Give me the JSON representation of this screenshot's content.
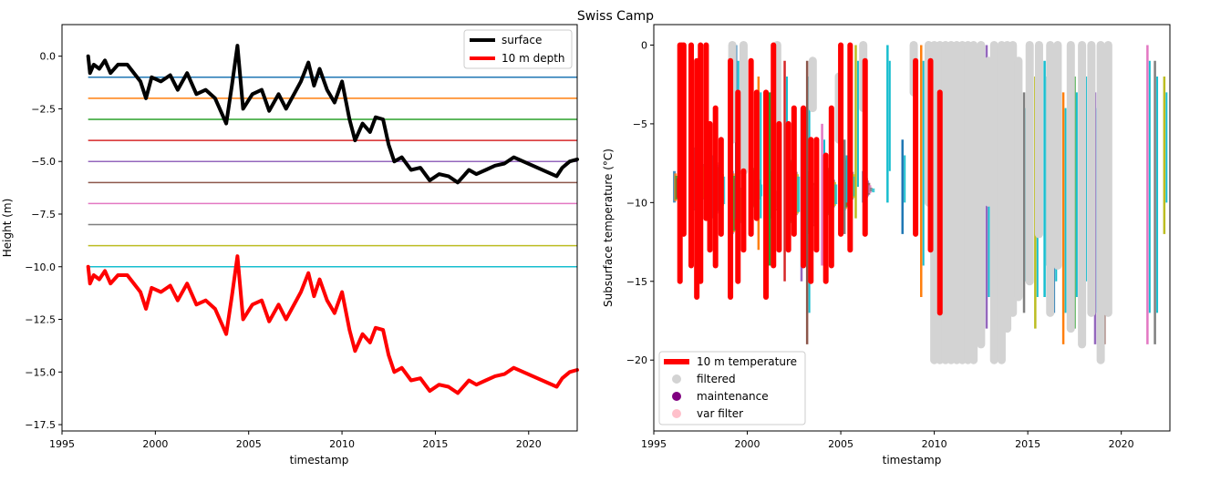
{
  "figure": {
    "title": "Swiss Camp"
  },
  "chart_data": [
    {
      "type": "line",
      "xlabel": "timestamp",
      "ylabel": "Height (m)",
      "xlim": [
        1995,
        2022.6
      ],
      "ylim": [
        -17.8,
        1.5
      ],
      "xticks": [
        1995,
        2000,
        2005,
        2010,
        2015,
        2020
      ],
      "xtick_labels": [
        "1995",
        "2000",
        "2005",
        "2010",
        "2015",
        "2020"
      ],
      "yticks": [
        0,
        -2.5,
        -5,
        -7.5,
        -10,
        -12.5,
        -15,
        -17.5
      ],
      "ytick_labels": [
        "0.0",
        "−2.5",
        "−5.0",
        "−7.5",
        "−10.0",
        "−12.5",
        "−15.0",
        "−17.5"
      ],
      "legend_position": "top-right",
      "legend": [
        {
          "label": "surface",
          "color": "#000000"
        },
        {
          "label": "10 m depth",
          "color": "#ff0000"
        }
      ],
      "hlines": {
        "values": [
          -1,
          -2,
          -3,
          -4,
          -5,
          -6,
          -7,
          -8,
          -9,
          -10
        ],
        "colors": [
          "#1f77b4",
          "#ff7f0e",
          "#2ca02c",
          "#d62728",
          "#9467bd",
          "#8c564b",
          "#e377c2",
          "#7f7f7f",
          "#bcbd22",
          "#17becf"
        ],
        "xrange": [
          1996.4,
          2022.6
        ]
      },
      "series": [
        {
          "color": "#000000",
          "x": [
            1996.4,
            1996.5,
            1996.7,
            1997.0,
            1997.3,
            1997.6,
            1998.0,
            1998.5,
            1999.2,
            1999.5,
            1999.8,
            2000.3,
            2000.8,
            2001.2,
            2001.7,
            2002.2,
            2002.7,
            2003.2,
            2003.6,
            2003.8,
            2004.1,
            2004.4,
            2004.7,
            2005.2,
            2005.7,
            2006.1,
            2006.6,
            2007.0,
            2007.8,
            2008.2,
            2008.5,
            2008.8,
            2009.2,
            2009.6,
            2010.0,
            2010.4,
            2010.7,
            2011.1,
            2011.5,
            2011.8,
            2012.2,
            2012.5,
            2012.8,
            2013.2,
            2013.7,
            2014.2,
            2014.7,
            2015.2,
            2015.7,
            2016.2,
            2016.8,
            2017.2,
            2017.7,
            2018.2,
            2018.7,
            2019.2,
            2021.5,
            2021.8,
            2022.2,
            2022.6
          ],
          "y": [
            0,
            -0.8,
            -0.4,
            -0.6,
            -0.2,
            -0.8,
            -0.4,
            -0.4,
            -1.2,
            -2.0,
            -1.0,
            -1.2,
            -0.9,
            -1.6,
            -0.8,
            -1.8,
            -1.6,
            -2.0,
            -2.8,
            -3.2,
            -1.4,
            0.5,
            -2.5,
            -1.8,
            -1.6,
            -2.6,
            -1.8,
            -2.5,
            -1.2,
            -0.3,
            -1.4,
            -0.6,
            -1.6,
            -2.2,
            -1.2,
            -3.0,
            -4.0,
            -3.2,
            -3.6,
            -2.9,
            -3.0,
            -4.2,
            -5.0,
            -4.8,
            -5.4,
            -5.3,
            -5.9,
            -5.6,
            -5.7,
            -6.0,
            -5.4,
            -5.6,
            -5.4,
            -5.2,
            -5.1,
            -4.8,
            -5.7,
            -5.3,
            -5.0,
            -4.9
          ]
        },
        {
          "color": "#ff0000",
          "x": [
            1996.4,
            1996.5,
            1996.7,
            1997.0,
            1997.3,
            1997.6,
            1998.0,
            1998.5,
            1999.2,
            1999.5,
            1999.8,
            2000.3,
            2000.8,
            2001.2,
            2001.7,
            2002.2,
            2002.7,
            2003.2,
            2003.6,
            2003.8,
            2004.1,
            2004.4,
            2004.7,
            2005.2,
            2005.7,
            2006.1,
            2006.6,
            2007.0,
            2007.8,
            2008.2,
            2008.5,
            2008.8,
            2009.2,
            2009.6,
            2010.0,
            2010.4,
            2010.7,
            2011.1,
            2011.5,
            2011.8,
            2012.2,
            2012.5,
            2012.8,
            2013.2,
            2013.7,
            2014.2,
            2014.7,
            2015.2,
            2015.7,
            2016.2,
            2016.8,
            2017.2,
            2017.7,
            2018.2,
            2018.7,
            2019.2,
            2021.5,
            2021.8,
            2022.2,
            2022.6
          ],
          "y": [
            -10,
            -10.8,
            -10.4,
            -10.6,
            -10.2,
            -10.8,
            -10.4,
            -10.4,
            -11.2,
            -12.0,
            -11.0,
            -11.2,
            -10.9,
            -11.6,
            -10.8,
            -11.8,
            -11.6,
            -12.0,
            -12.8,
            -13.2,
            -11.4,
            -9.5,
            -12.5,
            -11.8,
            -11.6,
            -12.6,
            -11.8,
            -12.5,
            -11.2,
            -10.3,
            -11.4,
            -10.6,
            -11.6,
            -12.2,
            -11.2,
            -13.0,
            -14.0,
            -13.2,
            -13.6,
            -12.9,
            -13.0,
            -14.2,
            -15.0,
            -14.8,
            -15.4,
            -15.3,
            -15.9,
            -15.6,
            -15.7,
            -16.0,
            -15.4,
            -15.6,
            -15.4,
            -15.2,
            -15.1,
            -14.8,
            -15.7,
            -15.3,
            -15.0,
            -14.9
          ]
        }
      ]
    },
    {
      "type": "line",
      "xlabel": "timestamp",
      "ylabel": "Subsurface temperature (°C)",
      "xlim": [
        1995,
        2022.6
      ],
      "ylim": [
        -24.5,
        1.3
      ],
      "xticks": [
        1995,
        2000,
        2005,
        2010,
        2015,
        2020
      ],
      "xtick_labels": [
        "1995",
        "2000",
        "2005",
        "2010",
        "2015",
        "2020"
      ],
      "yticks": [
        0,
        -5,
        -10,
        -15,
        -20
      ],
      "ytick_labels": [
        "0",
        "−5",
        "−10",
        "−15",
        "−20"
      ],
      "legend_position": "lower-left",
      "legend": [
        {
          "label": "10 m temperature",
          "color": "#ff0000",
          "marker": "line"
        },
        {
          "label": "filtered",
          "color": "#d3d3d3",
          "marker": "dot"
        },
        {
          "label": "maintenance",
          "color": "#800080",
          "marker": "dot"
        },
        {
          "label": "var filter",
          "color": "#ffc0cb",
          "marker": "dot"
        }
      ],
      "depth_colors": [
        "#1f77b4",
        "#ff7f0e",
        "#2ca02c",
        "#d62728",
        "#9467bd",
        "#8c564b",
        "#e377c2",
        "#7f7f7f",
        "#bcbd22",
        "#17becf"
      ],
      "background_band": {
        "x": [
          1996.4,
          1997.5,
          1998.5,
          1999.5,
          2000.5,
          2001.5,
          2002.5,
          2003.5,
          2004.5,
          2005.5,
          2006.5
        ],
        "ymin": [
          -10,
          -10.5,
          -11,
          -12,
          -10.5,
          -11,
          -11.5,
          -12,
          -11,
          -10.5,
          -10
        ],
        "ymax": [
          -8,
          -6.5,
          -7,
          -8,
          -7.5,
          -8,
          -7,
          -8,
          -7.5,
          -7,
          -8
        ]
      },
      "temperature_10m": {
        "x": [
          1996.4,
          1996.5,
          1996.6,
          1997.0,
          1997.3,
          1997.5,
          1997.8,
          1998.0,
          1998.3,
          1998.6,
          1999.1,
          1999.5,
          1999.8,
          2000.2,
          2000.5,
          2001.0,
          2001.4,
          2001.7,
          2002.2,
          2002.5,
          2003.0,
          2003.4,
          2003.7,
          2004.2,
          2004.5,
          2005.0,
          2005.5,
          2006.3,
          2009.0,
          2009.8,
          2010.3
        ],
        "ymin": [
          -15,
          -5,
          -12,
          -14,
          -16,
          -15,
          -11,
          -13,
          -14,
          -12,
          -16,
          -15,
          -13,
          -12,
          -11,
          -16,
          -14,
          -13,
          -13,
          -12,
          -14,
          -15,
          -13,
          -15,
          -14,
          -12,
          -13,
          -12,
          -12,
          -13,
          -17
        ],
        "ymax": [
          0,
          0,
          0,
          0,
          -1,
          0,
          0,
          -5,
          -4,
          -6,
          -1,
          -3,
          -8,
          -1,
          -3,
          -3,
          0,
          -5,
          -5,
          -4,
          -4,
          -6,
          -6,
          -7,
          -4,
          0,
          0,
          -1,
          -1,
          -1,
          -3
        ]
      },
      "filtered_columns": {
        "x": [
          1999.2,
          1999.8,
          2001.6,
          2003.5,
          2004.9,
          2006.2,
          2008.9,
          2009.7,
          2010.0,
          2010.3,
          2010.6,
          2010.9,
          2011.2,
          2011.5,
          2011.8,
          2012.1,
          2012.5,
          2012.9,
          2013.2,
          2013.6,
          2013.9,
          2014.2,
          2014.5,
          2015.1,
          2015.6,
          2016.2,
          2016.6,
          2017.3,
          2017.9,
          2018.4,
          2018.9,
          2019.3
        ],
        "ymin": [
          -6,
          -8,
          -9,
          -4,
          -6,
          -4,
          -3,
          -10,
          -20,
          -20,
          -20,
          -20,
          -20,
          -20,
          -20,
          -20,
          -19,
          -10,
          -20,
          -20,
          -18,
          -17,
          -16,
          -15,
          -12,
          -17,
          -14,
          -18,
          -19,
          -17,
          -20,
          -17
        ],
        "ymax": [
          0,
          0,
          0,
          -1,
          -2,
          0,
          0,
          0,
          0,
          0,
          0,
          0,
          0,
          0,
          0,
          0,
          0,
          -1,
          0,
          0,
          0,
          0,
          -1,
          0,
          0,
          0,
          0,
          0,
          0,
          0,
          0,
          0
        ]
      },
      "depth_spikes": {
        "x": [
          1999.4,
          2000.6,
          2001.2,
          2002.0,
          2002.9,
          2003.2,
          2004.0,
          2005.2,
          2005.8,
          2007.5,
          2008.3,
          2009.3,
          2011.0,
          2012.3,
          2012.8,
          2013.6,
          2014.3,
          2014.8,
          2015.4,
          2015.9,
          2016.4,
          2016.9,
          2017.5,
          2018.0,
          2018.6,
          2019.1,
          2021.4,
          2021.8,
          2022.3
        ],
        "ymin": [
          -11,
          -13,
          -14,
          -15,
          -15,
          -19,
          -14,
          -12,
          -11,
          -10,
          -12,
          -16,
          -18,
          -17,
          -18,
          -19,
          -16,
          -17,
          -18,
          -16,
          -17,
          -19,
          -18,
          -17,
          -19,
          -19,
          -19,
          -19,
          -12
        ],
        "ymax": [
          0,
          -2,
          -3,
          -1,
          -4,
          -1,
          -5,
          -6,
          0,
          0,
          -6,
          0,
          0,
          -2,
          0,
          0,
          -1,
          -3,
          -2,
          -1,
          -4,
          -3,
          -2,
          -1,
          -3,
          -1,
          0,
          -1,
          -2
        ]
      }
    }
  ]
}
